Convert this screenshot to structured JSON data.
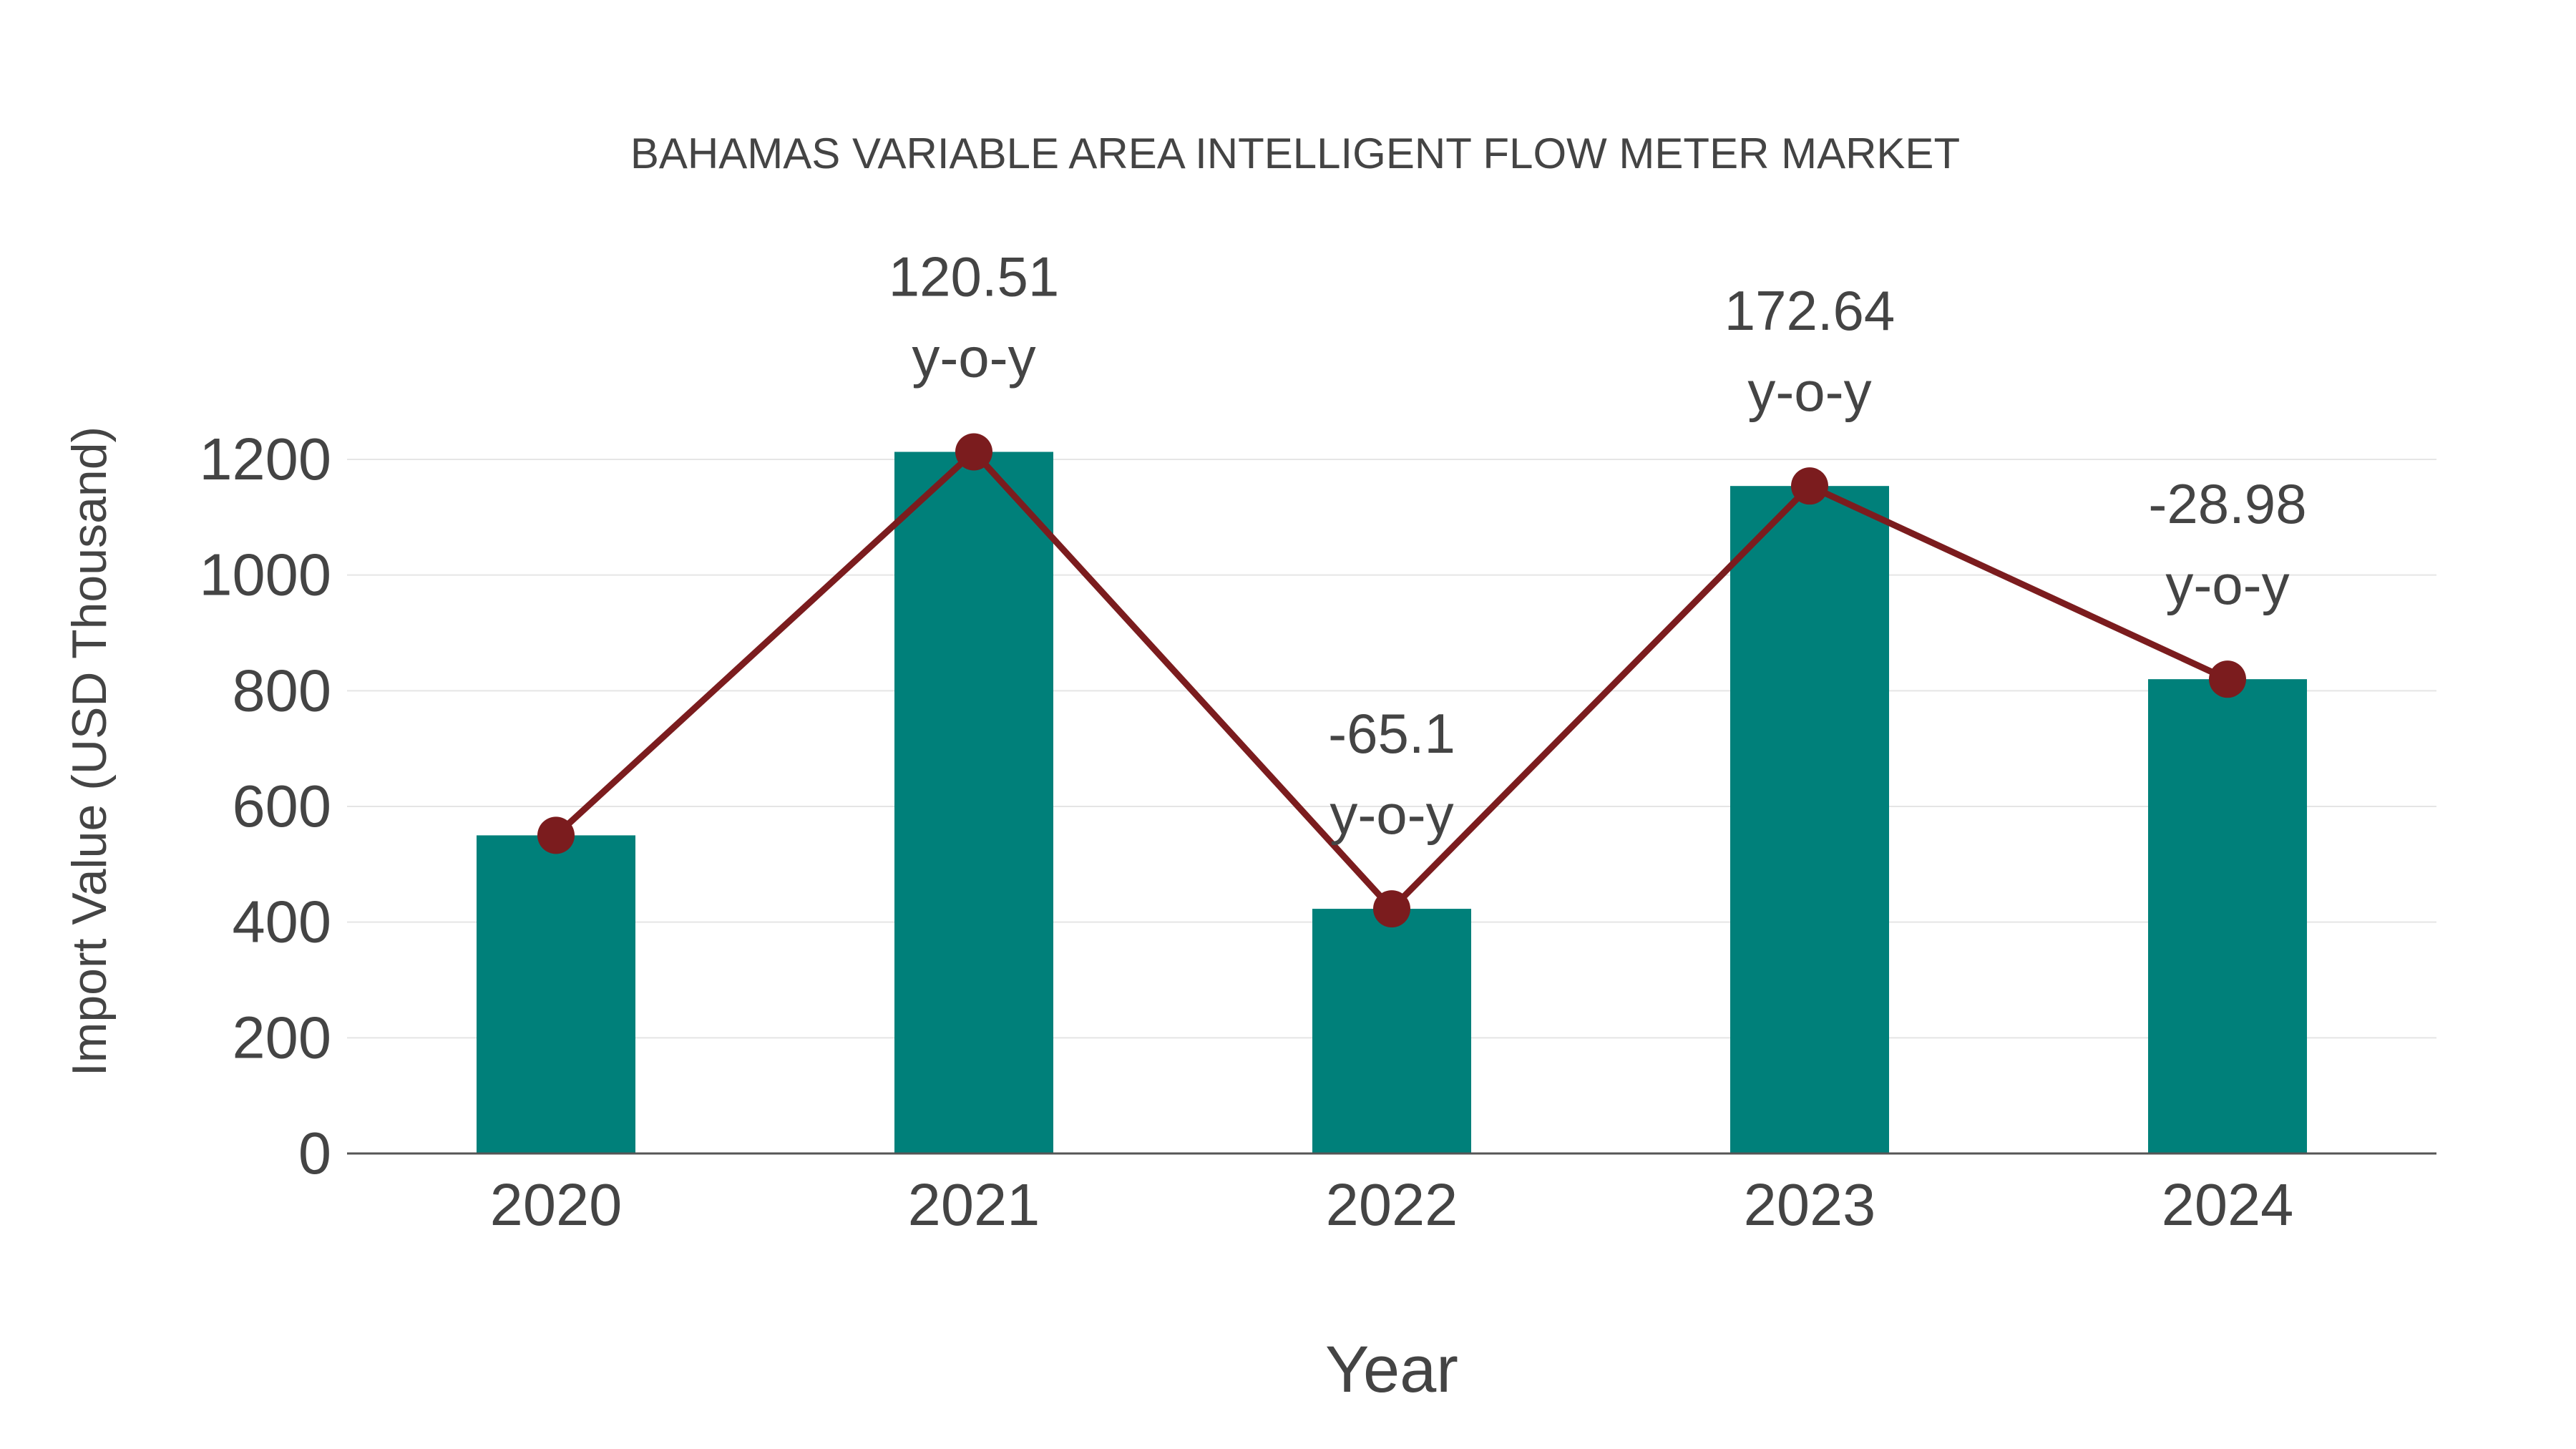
{
  "chart_data": {
    "type": "bar",
    "title": "BAHAMAS VARIABLE AREA INTELLIGENT FLOW METER MARKET",
    "xlabel": "Year",
    "ylabel": "Import Value (USD Thousand)",
    "categories": [
      "2020",
      "2021",
      "2022",
      "2023",
      "2024"
    ],
    "values": [
      550,
      1213,
      423,
      1154,
      820
    ],
    "line_values": [
      550,
      1213,
      423,
      1154,
      820
    ],
    "annotations": [
      null,
      "120.51",
      "-65.1",
      "172.64",
      "-28.98"
    ],
    "annotation_suffix": "y-o-y",
    "ylim": [
      0,
      1300
    ],
    "yticks": [
      0,
      200,
      400,
      600,
      800,
      1000,
      1200
    ],
    "grid": true,
    "colors": {
      "bar": "#00807a",
      "line": "#7b1c1e",
      "grid": "#e5e5e5",
      "axis": "#555555"
    }
  }
}
